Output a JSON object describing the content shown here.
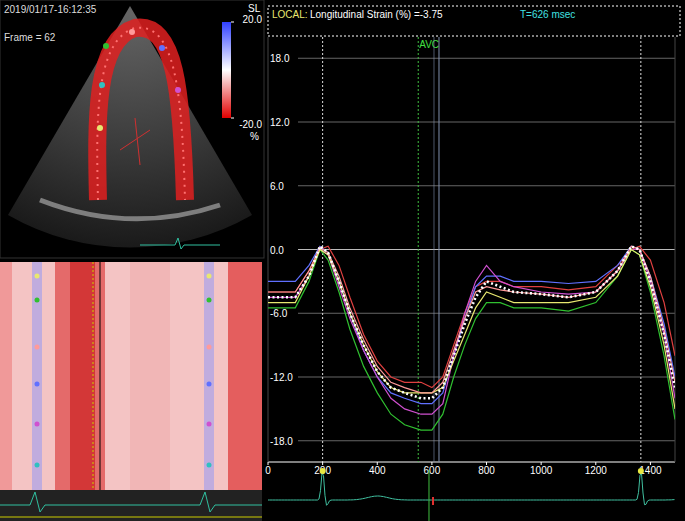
{
  "header": {
    "timestamp": "2019/01/17-16:12:35",
    "frame": "Frame = 62",
    "local_label": "LOCAL:",
    "measure": "Longitudinal Strain (%) =-3.75",
    "time": "T=626 msec"
  },
  "color_bar": {
    "title": "SL",
    "unit": "%",
    "range": [
      -20,
      20
    ],
    "ticks": [
      {
        "value": 20,
        "label": "20.0"
      },
      {
        "value": -20,
        "label": "-20.0"
      }
    ]
  },
  "chart_data": {
    "type": "line",
    "x": [
      0,
      100,
      150,
      190,
      220,
      260,
      300,
      350,
      400,
      450,
      500,
      560,
      600,
      640,
      680,
      720,
      760,
      800,
      850,
      900,
      1000,
      1100,
      1200,
      1280,
      1330,
      1360,
      1400,
      1450,
      1490
    ],
    "series": [
      {
        "color": "#e04040",
        "line_style": "solid",
        "values": [
          -4,
          -4,
          -2,
          0,
          0.3,
          -1.5,
          -4.5,
          -8,
          -10.5,
          -12,
          -12.5,
          -12.5,
          -13,
          -12,
          -9,
          -6,
          -3.5,
          -3,
          -3,
          -3.5,
          -3.5,
          -3.8,
          -3.5,
          -1.5,
          0,
          0.3,
          -1,
          -5,
          -10
        ]
      },
      {
        "color": "#6070ff",
        "line_style": "solid",
        "values": [
          -3,
          -3,
          -1.5,
          0.3,
          -0.3,
          -3,
          -6,
          -9.5,
          -12,
          -13.5,
          -14,
          -14.5,
          -14.5,
          -13.5,
          -10,
          -6.5,
          -3.5,
          -2.5,
          -2.5,
          -3,
          -3,
          -3.2,
          -3,
          -1.5,
          0.3,
          0,
          -2.5,
          -7,
          -12
        ]
      },
      {
        "color": "#d050d0",
        "line_style": "solid",
        "values": [
          -4.5,
          -4.5,
          -2.5,
          0,
          -0.5,
          -3.5,
          -6.5,
          -9.5,
          -12,
          -14,
          -15,
          -15.5,
          -15.5,
          -14.5,
          -10,
          -6,
          -3,
          -1.5,
          -3,
          -3.5,
          -4,
          -4.2,
          -4,
          -2,
          0,
          0,
          -3,
          -8,
          -14
        ]
      },
      {
        "color": "#30c030",
        "line_style": "solid",
        "values": [
          -5.5,
          -5.5,
          -3,
          0,
          -1,
          -4,
          -7.5,
          -11,
          -13.5,
          -15.5,
          -16.5,
          -17,
          -17,
          -15.5,
          -12,
          -9,
          -6.5,
          -5,
          -5,
          -5.5,
          -5.5,
          -5.8,
          -5,
          -2.5,
          0,
          -0.5,
          -4,
          -10,
          -16
        ]
      },
      {
        "color": "#e8e870",
        "line_style": "solid",
        "values": [
          -5,
          -5,
          -2.5,
          0,
          -0.5,
          -3,
          -6,
          -9,
          -11.5,
          -13,
          -13.5,
          -13.5,
          -13.5,
          -13,
          -10.5,
          -8,
          -5.5,
          -4,
          -4.5,
          -5,
          -5,
          -5,
          -4.5,
          -2.5,
          0,
          -0.5,
          -3.5,
          -9,
          -15
        ]
      },
      {
        "color": "#ff9a9a",
        "line_style": "solid",
        "values": [
          -4,
          -4,
          -2,
          0.2,
          -0.3,
          -2.5,
          -5.5,
          -8.5,
          -11,
          -12.5,
          -13,
          -13.5,
          -13.5,
          -12.5,
          -9.5,
          -6.5,
          -4,
          -3.5,
          -3.8,
          -4,
          -4.2,
          -4.5,
          -4,
          -2,
          0.3,
          0,
          -2.5,
          -7.5,
          -12.5
        ]
      },
      {
        "color": "#ffffff",
        "line_style": "dotted",
        "values": [
          -4.5,
          -4.5,
          -2.5,
          0.3,
          -0.3,
          -3,
          -6,
          -9,
          -11.5,
          -13,
          -13.5,
          -14,
          -14,
          -13,
          -10,
          -7,
          -4.5,
          -3,
          -3.5,
          -4,
          -4.2,
          -4.5,
          -4,
          -2,
          0.3,
          0,
          -3,
          -8,
          -13
        ]
      }
    ],
    "xlim": [
      0,
      1490
    ],
    "ylim": [
      -20,
      20
    ],
    "xticks": [
      0,
      200,
      400,
      600,
      800,
      1000,
      1200,
      1400
    ],
    "yticks": [
      {
        "value": 18,
        "label": "18.0"
      },
      {
        "value": 12,
        "label": "12.0"
      },
      {
        "value": 6,
        "label": "6.0"
      },
      {
        "value": 0,
        "label": "0.0"
      },
      {
        "value": -6,
        "label": "-6.0"
      },
      {
        "value": -12,
        "label": "-12.0"
      },
      {
        "value": -18,
        "label": "-18.0"
      }
    ],
    "grid": true,
    "annotations": [
      {
        "text": "AVC",
        "x": 550
      }
    ],
    "event_lines": [
      200,
      1365
    ],
    "cursor": 626
  }
}
